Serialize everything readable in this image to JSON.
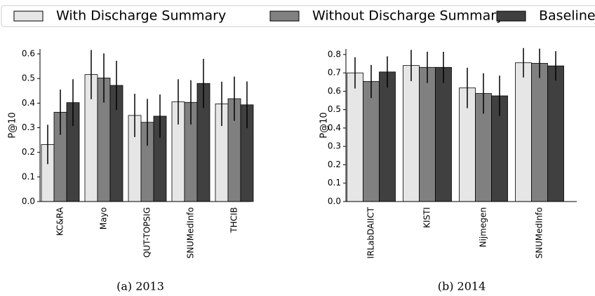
{
  "chart_data": [
    {
      "type": "bar",
      "caption": "(a) 2013",
      "ylabel": "P@10",
      "categories": [
        "KC&RA",
        "Mayo",
        "QUT-TOPSIG",
        "SNUMedInfo",
        "THCIB"
      ],
      "series": [
        {
          "name": "With Discharge Summary",
          "color": "#e6e6e6",
          "values": [
            0.232,
            0.516,
            0.35,
            0.405,
            0.397
          ],
          "errors": [
            0.08,
            0.1,
            0.088,
            0.092,
            0.09
          ]
        },
        {
          "name": "Without Discharge Summary",
          "color": "#808080",
          "values": [
            0.363,
            0.502,
            0.322,
            0.403,
            0.418
          ],
          "errors": [
            0.092,
            0.1,
            0.095,
            0.09,
            0.09
          ]
        },
        {
          "name": "Baseline",
          "color": "#404040",
          "values": [
            0.402,
            0.472,
            0.347,
            0.48,
            0.393
          ],
          "errors": [
            0.095,
            0.1,
            0.088,
            0.1,
            0.095
          ]
        }
      ],
      "ylim": [
        0,
        0.62
      ],
      "yticks": [
        {
          "value": 0,
          "label": "0.0"
        },
        0.1,
        0.2,
        0.3,
        0.4,
        0.5,
        0.6
      ]
    },
    {
      "type": "bar",
      "caption": "(b) 2014",
      "ylabel": "P@10",
      "categories": [
        "IRLabDAIICT",
        "KISTI",
        "Nijmegen",
        "SNUMedInfo"
      ],
      "series": [
        {
          "color": "#e6e6e6",
          "values": [
            0.7,
            0.74,
            0.618,
            0.755
          ],
          "errors": [
            0.085,
            0.085,
            0.11,
            0.08
          ]
        },
        {
          "color": "#808080",
          "values": [
            0.653,
            0.73,
            0.588,
            0.752
          ],
          "errors": [
            0.09,
            0.085,
            0.11,
            0.08
          ]
        },
        {
          "color": "#404040",
          "values": [
            0.705,
            0.73,
            0.575,
            0.738
          ],
          "errors": [
            0.085,
            0.085,
            0.11,
            0.08
          ]
        }
      ],
      "ylim": [
        0,
        0.83
      ],
      "yticks": [
        {
          "value": 0,
          "label": "0.0"
        },
        0.1,
        0.2,
        0.3,
        0.4,
        0.5,
        0.6,
        0.7,
        0.8
      ]
    }
  ]
}
